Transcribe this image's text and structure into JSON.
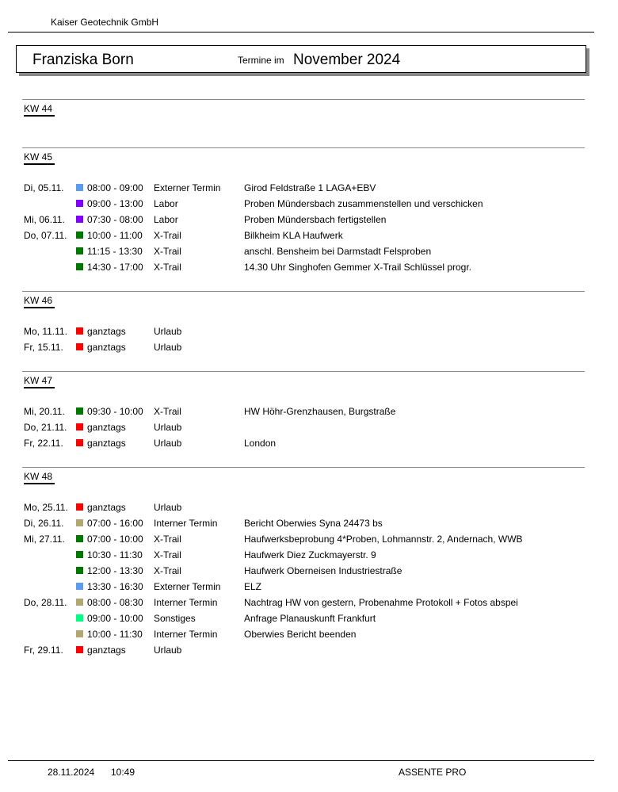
{
  "header": {
    "company": "Kaiser Geotechnik GmbH",
    "person": "Franziska Born",
    "subtitle": "Termine im",
    "month": "November 2024"
  },
  "colors": {
    "Externer Termin": "#5b9bf0",
    "Labor": "#8000ff",
    "X-Trail": "#007800",
    "Urlaub": "#ff0000",
    "Interner Termin": "#b0a870",
    "Sonstiges": "#00ff80"
  },
  "weeks": [
    {
      "label": "KW 44",
      "rows": []
    },
    {
      "label": "KW 45",
      "rows": [
        {
          "day": "Di,  05.11.",
          "time": "08:00 - 09:00",
          "cat": "Externer Termin",
          "desc": "Girod Feldstraße 1 LAGA+EBV"
        },
        {
          "day": "",
          "time": "09:00 - 13:00",
          "cat": "Labor",
          "desc": "Proben Mündersbach zusammenstellen und verschicken"
        },
        {
          "day": "Mi,  06.11.",
          "time": "07:30 - 08:00",
          "cat": "Labor",
          "desc": "Proben Mündersbach fertigstellen"
        },
        {
          "day": "Do, 07.11.",
          "time": "10:00 - 11:00",
          "cat": "X-Trail",
          "desc": "Bilkheim KLA Haufwerk"
        },
        {
          "day": "",
          "time": "11:15 - 13:30",
          "cat": "X-Trail",
          "desc": "anschl. Bensheim bei Darmstadt Felsproben"
        },
        {
          "day": "",
          "time": "14:30 - 17:00",
          "cat": "X-Trail",
          "desc": "14.30 Uhr Singhofen Gemmer X-Trail Schlüssel progr."
        }
      ]
    },
    {
      "label": "KW 46",
      "rows": [
        {
          "day": "Mo, 11.11.",
          "time": "ganztags",
          "cat": "Urlaub",
          "desc": ""
        },
        {
          "day": "Fr,  15.11.",
          "time": "ganztags",
          "cat": "Urlaub",
          "desc": ""
        }
      ]
    },
    {
      "label": "KW 47",
      "rows": [
        {
          "day": "Mi,  20.11.",
          "time": "09:30 - 10:00",
          "cat": "X-Trail",
          "desc": "HW Höhr-Grenzhausen, Burgstraße"
        },
        {
          "day": "Do, 21.11.",
          "time": "ganztags",
          "cat": "Urlaub",
          "desc": ""
        },
        {
          "day": "Fr,  22.11.",
          "time": "ganztags",
          "cat": "Urlaub",
          "desc": "London"
        }
      ]
    },
    {
      "label": "KW 48",
      "rows": [
        {
          "day": "Mo, 25.11.",
          "time": "ganztags",
          "cat": "Urlaub",
          "desc": ""
        },
        {
          "day": "Di,  26.11.",
          "time": "07:00 - 16:00",
          "cat": "Interner Termin",
          "desc": "Bericht Oberwies Syna 24473 bs"
        },
        {
          "day": "Mi,  27.11.",
          "time": "07:00 - 10:00",
          "cat": "X-Trail",
          "desc": "Haufwerksbeprobung 4*Proben, Lohmannstr. 2, Andernach, WWB"
        },
        {
          "day": "",
          "time": "10:30 - 11:30",
          "cat": "X-Trail",
          "desc": "Haufwerk Diez Zuckmayerstr. 9"
        },
        {
          "day": "",
          "time": "12:00 - 13:30",
          "cat": "X-Trail",
          "desc": "Haufwerk Oberneisen Industriestraße"
        },
        {
          "day": "",
          "time": "13:30 - 16:30",
          "cat": "Externer Termin",
          "desc": "ELZ"
        },
        {
          "day": "Do, 28.11.",
          "time": "08:00 - 08:30",
          "cat": "Interner Termin",
          "desc": "Nachtrag HW von gestern, Probenahme Protokoll + Fotos abspei"
        },
        {
          "day": "",
          "time": "09:00 - 10:00",
          "cat": "Sonstiges",
          "desc": "Anfrage Planauskunft Frankfurt"
        },
        {
          "day": "",
          "time": "10:00 - 11:30",
          "cat": "Interner Termin",
          "desc": "Oberwies Bericht beenden"
        },
        {
          "day": "Fr,  29.11.",
          "time": "ganztags",
          "cat": "Urlaub",
          "desc": ""
        }
      ]
    }
  ],
  "footer": {
    "date": "28.11.2024",
    "time": "10:49",
    "product": "ASSENTE PRO"
  }
}
